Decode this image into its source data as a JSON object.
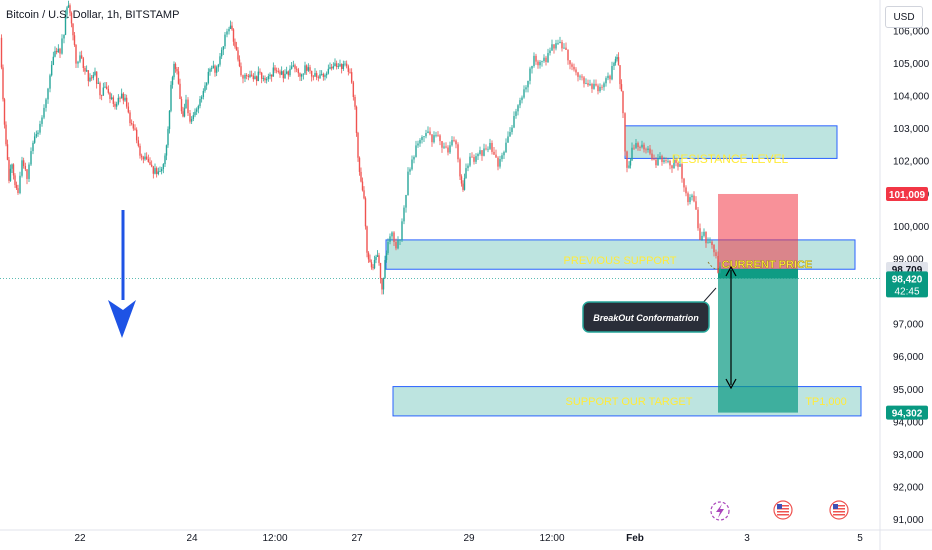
{
  "header": {
    "title": "Bitcoin / U.S. Dollar, 1h, BITSTAMP",
    "currency": "USD"
  },
  "colors": {
    "up": "#26a69a",
    "down": "#ef5350",
    "zone_fill": "#b2dfdb",
    "zone_stroke": "#2962ff",
    "label_yellow": "#ffeb3b",
    "arrow_blue": "#1e53e5",
    "target_fill": "#089981",
    "stop_fill": "#f23645"
  },
  "chart_data": {
    "type": "candlestick",
    "title": "Bitcoin / U.S. Dollar, 1h, BITSTAMP",
    "ylim": [
      90700,
      106500
    ],
    "y_ticks": [
      91000,
      92000,
      93000,
      94000,
      95000,
      96000,
      97000,
      98000,
      99000,
      100000,
      101000,
      102000,
      103000,
      104000,
      105000,
      106000
    ],
    "y_tick_labels": [
      "91,000",
      "92,000",
      "93,000",
      "94,000",
      "95,000",
      "96,000",
      "97,000",
      "98,000",
      "99,000",
      "100,000",
      "101,000",
      "102,000",
      "103,000",
      "104,000",
      "105,000",
      "106,000"
    ],
    "x_ticks": [
      "22",
      "24",
      "12:00",
      "27",
      "29",
      "12:00",
      "Feb",
      "3",
      "5"
    ],
    "series": [
      {
        "name": "price",
        "path": [
          [
            0,
            105800
          ],
          [
            3,
            103900
          ],
          [
            6,
            102500
          ],
          [
            9,
            101400
          ],
          [
            12,
            102000
          ],
          [
            15,
            101300
          ],
          [
            18,
            101000
          ],
          [
            22,
            102000
          ],
          [
            27,
            101600
          ],
          [
            33,
            102600
          ],
          [
            38,
            102900
          ],
          [
            44,
            103600
          ],
          [
            50,
            104700
          ],
          [
            55,
            105300
          ],
          [
            60,
            105400
          ],
          [
            64,
            106000
          ],
          [
            67,
            106800
          ],
          [
            70,
            106600
          ],
          [
            73,
            106000
          ],
          [
            76,
            105100
          ],
          [
            80,
            105200
          ],
          [
            85,
            104800
          ],
          [
            90,
            104500
          ],
          [
            95,
            104700
          ],
          [
            100,
            104100
          ],
          [
            105,
            104200
          ],
          [
            110,
            104000
          ],
          [
            115,
            103700
          ],
          [
            120,
            104000
          ],
          [
            125,
            103900
          ],
          [
            130,
            103200
          ],
          [
            135,
            102900
          ],
          [
            140,
            102200
          ],
          [
            145,
            102100
          ],
          [
            150,
            101800
          ],
          [
            155,
            101700
          ],
          [
            160,
            101600
          ],
          [
            165,
            102200
          ],
          [
            168,
            103000
          ],
          [
            171,
            104300
          ],
          [
            174,
            105000
          ],
          [
            177,
            104800
          ],
          [
            180,
            103800
          ],
          [
            183,
            103300
          ],
          [
            186,
            103800
          ],
          [
            190,
            103200
          ],
          [
            195,
            103500
          ],
          [
            200,
            103900
          ],
          [
            205,
            104300
          ],
          [
            210,
            104900
          ],
          [
            215,
            104800
          ],
          [
            220,
            105200
          ],
          [
            225,
            105900
          ],
          [
            229,
            106100
          ],
          [
            232,
            106000
          ],
          [
            235,
            105500
          ],
          [
            238,
            105100
          ],
          [
            241,
            104600
          ],
          [
            245,
            104700
          ],
          [
            250,
            104600
          ],
          [
            255,
            104500
          ],
          [
            260,
            104700
          ],
          [
            265,
            104500
          ],
          [
            270,
            104700
          ],
          [
            275,
            104800
          ],
          [
            280,
            104700
          ],
          [
            285,
            104600
          ],
          [
            290,
            104800
          ],
          [
            295,
            104900
          ],
          [
            300,
            104700
          ],
          [
            305,
            104900
          ],
          [
            310,
            104800
          ],
          [
            315,
            104600
          ],
          [
            320,
            104600
          ],
          [
            325,
            104700
          ],
          [
            330,
            104800
          ],
          [
            335,
            104900
          ],
          [
            340,
            104900
          ],
          [
            345,
            105000
          ],
          [
            350,
            104700
          ],
          [
            355,
            103700
          ],
          [
            358,
            102200
          ],
          [
            361,
            101300
          ],
          [
            364,
            100800
          ],
          [
            367,
            99300
          ],
          [
            370,
            98800
          ],
          [
            373,
            98700
          ],
          [
            376,
            99100
          ],
          [
            379,
            98900
          ],
          [
            382,
            98200
          ],
          [
            385,
            98900
          ],
          [
            388,
            99500
          ],
          [
            392,
            99900
          ],
          [
            396,
            99300
          ],
          [
            400,
            99700
          ],
          [
            404,
            100600
          ],
          [
            408,
            101600
          ],
          [
            412,
            102000
          ],
          [
            416,
            102400
          ],
          [
            420,
            102700
          ],
          [
            424,
            102900
          ],
          [
            428,
            102800
          ],
          [
            432,
            102700
          ],
          [
            436,
            102800
          ],
          [
            440,
            102700
          ],
          [
            444,
            102400
          ],
          [
            448,
            102300
          ],
          [
            452,
            102600
          ],
          [
            456,
            102600
          ],
          [
            460,
            101600
          ],
          [
            463,
            101100
          ],
          [
            466,
            101700
          ],
          [
            470,
            102100
          ],
          [
            474,
            102000
          ],
          [
            478,
            102300
          ],
          [
            482,
            102300
          ],
          [
            486,
            102300
          ],
          [
            490,
            102500
          ],
          [
            494,
            102100
          ],
          [
            498,
            101900
          ],
          [
            502,
            102200
          ],
          [
            506,
            102500
          ],
          [
            510,
            102800
          ],
          [
            514,
            103300
          ],
          [
            518,
            103800
          ],
          [
            522,
            104000
          ],
          [
            526,
            104300
          ],
          [
            530,
            104900
          ],
          [
            534,
            105200
          ],
          [
            538,
            105000
          ],
          [
            542,
            105200
          ],
          [
            546,
            105100
          ],
          [
            550,
            105400
          ],
          [
            554,
            105600
          ],
          [
            558,
            105600
          ],
          [
            562,
            105500
          ],
          [
            566,
            105300
          ],
          [
            570,
            105100
          ],
          [
            574,
            104800
          ],
          [
            578,
            104700
          ],
          [
            582,
            104600
          ],
          [
            586,
            104300
          ],
          [
            590,
            104300
          ],
          [
            594,
            104300
          ],
          [
            598,
            104200
          ],
          [
            602,
            104300
          ],
          [
            606,
            104600
          ],
          [
            610,
            104600
          ],
          [
            614,
            105100
          ],
          [
            617,
            105200
          ],
          [
            620,
            104500
          ],
          [
            623,
            103600
          ],
          [
            625,
            102400
          ],
          [
            627,
            101900
          ],
          [
            629,
            101800
          ],
          [
            632,
            102300
          ],
          [
            636,
            102500
          ],
          [
            640,
            102500
          ],
          [
            644,
            102400
          ],
          [
            648,
            102400
          ],
          [
            652,
            102000
          ],
          [
            656,
            101900
          ],
          [
            660,
            102100
          ],
          [
            664,
            102000
          ],
          [
            668,
            102000
          ],
          [
            672,
            101900
          ],
          [
            676,
            102000
          ],
          [
            680,
            101800
          ],
          [
            684,
            101300
          ],
          [
            688,
            100800
          ],
          [
            692,
            101000
          ],
          [
            696,
            100400
          ],
          [
            700,
            99500
          ],
          [
            704,
            99800
          ],
          [
            708,
            99400
          ],
          [
            712,
            99500
          ],
          [
            716,
            99100
          ],
          [
            718,
            98500
          ],
          [
            720,
            98700
          ]
        ]
      }
    ]
  },
  "annotations": {
    "resistance": "RESISTANCE LEVEL",
    "previous_support": "PREVIOUS SUPPORT",
    "current_price": "CURRENT PRICE",
    "breakout": "BreakOut Conformatrion",
    "support_target": "SUPPORT OUR TARGET",
    "tp": "TP1,000"
  },
  "price_tags": {
    "stop": {
      "price": 101009,
      "label": "101,009"
    },
    "entry": {
      "price": 98709,
      "label": "98,709"
    },
    "current": {
      "price": 98420,
      "label": "98,420",
      "countdown": "42:45"
    },
    "target": {
      "price": 94302,
      "label": "94,302"
    }
  },
  "zones": {
    "resistance": [
      102100,
      103100
    ],
    "previous_support": [
      98700,
      99600
    ],
    "target": [
      94200,
      95100
    ],
    "current_line": 98420
  }
}
